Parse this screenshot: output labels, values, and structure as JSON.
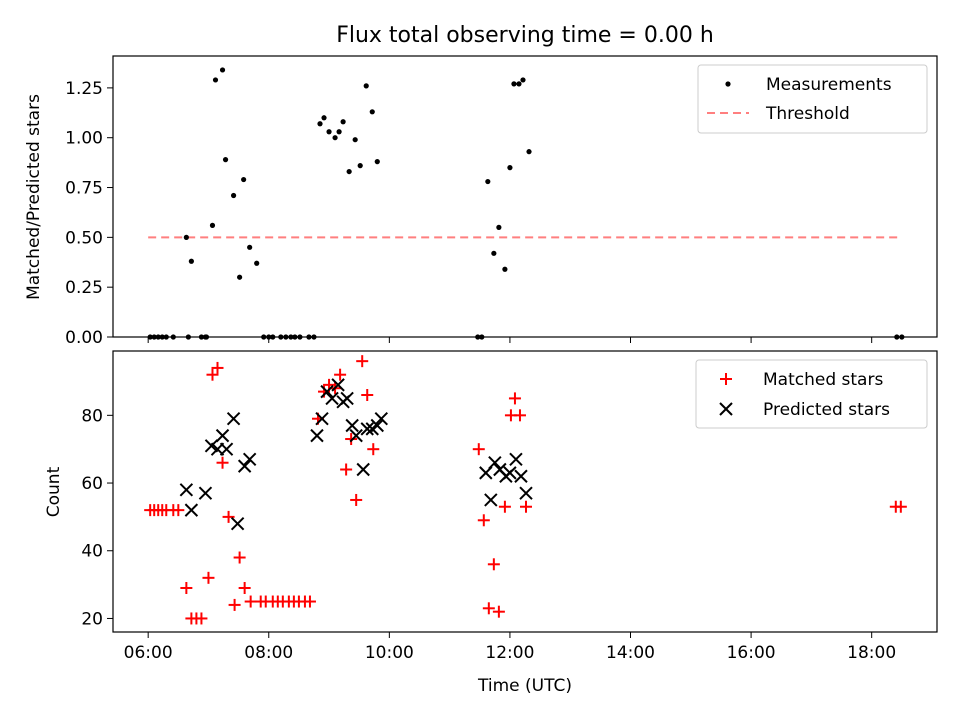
{
  "title": "Flux total observing time = 0.00 h",
  "colors": {
    "measurement": "#000000",
    "threshold": "#ff7f7f",
    "matched": "#ff0000",
    "predicted": "#000000"
  },
  "chart_data": [
    {
      "type": "scatter",
      "title": "Flux total observing time = 0.00 h",
      "ylabel": "Matched/Predicted stars",
      "xlim": [
        "05:25",
        "19:05"
      ],
      "ylim": [
        0,
        1.41
      ],
      "y_ticks": [
        "0.00",
        "0.25",
        "0.50",
        "0.75",
        "1.00",
        "1.25"
      ],
      "legend": {
        "placement": "top-right",
        "entries": [
          "Measurements",
          "Threshold"
        ]
      },
      "threshold": {
        "name": "Threshold",
        "value": 0.5,
        "x_range": [
          "06:00",
          "18:30"
        ]
      },
      "series": [
        {
          "name": "Measurements",
          "points": [
            [
              "06:02",
              0
            ],
            [
              "06:06",
              0
            ],
            [
              "06:10",
              0
            ],
            [
              "06:14",
              0
            ],
            [
              "06:18",
              0
            ],
            [
              "06:25",
              0
            ],
            [
              "06:40",
              0
            ],
            [
              "06:38",
              0.5
            ],
            [
              "06:43",
              0.38
            ],
            [
              "06:53",
              0
            ],
            [
              "06:58",
              0
            ],
            [
              "06:57",
              0
            ],
            [
              "07:04",
              0.56
            ],
            [
              "07:07",
              1.29
            ],
            [
              "07:14",
              1.34
            ],
            [
              "07:17",
              0.89
            ],
            [
              "07:25",
              0.71
            ],
            [
              "07:31",
              0.3
            ],
            [
              "07:35",
              0.79
            ],
            [
              "07:41",
              0.45
            ],
            [
              "07:48",
              0.37
            ],
            [
              "07:55",
              0
            ],
            [
              "08:00",
              0
            ],
            [
              "08:04",
              0
            ],
            [
              "08:12",
              0
            ],
            [
              "08:17",
              0
            ],
            [
              "08:22",
              0
            ],
            [
              "08:26",
              0
            ],
            [
              "08:31",
              0
            ],
            [
              "08:40",
              0
            ],
            [
              "08:45",
              0
            ],
            [
              "08:51",
              1.07
            ],
            [
              "08:55",
              1.1
            ],
            [
              "09:00",
              1.03
            ],
            [
              "09:06",
              1.0
            ],
            [
              "09:10",
              1.03
            ],
            [
              "09:14",
              1.08
            ],
            [
              "09:20",
              0.83
            ],
            [
              "09:26",
              0.99
            ],
            [
              "09:31",
              0.86
            ],
            [
              "09:37",
              1.26
            ],
            [
              "09:43",
              1.13
            ],
            [
              "09:48",
              0.88
            ],
            [
              "11:28",
              0
            ],
            [
              "11:32",
              0
            ],
            [
              "11:38",
              0.78
            ],
            [
              "11:44",
              0.42
            ],
            [
              "11:49",
              0.55
            ],
            [
              "11:55",
              0.34
            ],
            [
              "12:00",
              0.85
            ],
            [
              "12:04",
              1.27
            ],
            [
              "12:09",
              1.27
            ],
            [
              "12:13",
              1.29
            ],
            [
              "12:19",
              0.93
            ],
            [
              "18:25",
              0
            ],
            [
              "18:30",
              0
            ]
          ]
        }
      ]
    },
    {
      "type": "scatter",
      "xlabel": "Time (UTC)",
      "ylabel": "Count",
      "xlim": [
        "05:25",
        "19:05"
      ],
      "ylim": [
        16,
        99
      ],
      "x_ticks": [
        "06:00",
        "08:00",
        "10:00",
        "12:00",
        "14:00",
        "16:00",
        "18:00"
      ],
      "y_ticks": [
        "20",
        "40",
        "60",
        "80"
      ],
      "legend": {
        "placement": "top-right",
        "entries": [
          "Matched stars",
          "Predicted stars"
        ]
      },
      "series": [
        {
          "name": "Matched stars",
          "marker": "plus",
          "points": [
            [
              "06:02",
              52
            ],
            [
              "06:06",
              52
            ],
            [
              "06:10",
              52
            ],
            [
              "06:14",
              52
            ],
            [
              "06:18",
              52
            ],
            [
              "06:25",
              52
            ],
            [
              "06:30",
              52
            ],
            [
              "06:38",
              29
            ],
            [
              "06:43",
              20
            ],
            [
              "06:48",
              20
            ],
            [
              "06:53",
              20
            ],
            [
              "07:00",
              32
            ],
            [
              "07:04",
              92
            ],
            [
              "07:09",
              94
            ],
            [
              "07:14",
              66
            ],
            [
              "07:20",
              50
            ],
            [
              "07:26",
              24
            ],
            [
              "07:31",
              38
            ],
            [
              "07:36",
              29
            ],
            [
              "07:42",
              25
            ],
            [
              "07:52",
              25
            ],
            [
              "07:57",
              25
            ],
            [
              "08:04",
              25
            ],
            [
              "08:09",
              25
            ],
            [
              "08:14",
              25
            ],
            [
              "08:20",
              25
            ],
            [
              "08:25",
              25
            ],
            [
              "08:30",
              25
            ],
            [
              "08:36",
              25
            ],
            [
              "08:41",
              25
            ],
            [
              "08:49",
              79
            ],
            [
              "08:55",
              87
            ],
            [
              "09:00",
              89
            ],
            [
              "09:06",
              88
            ],
            [
              "09:11",
              92
            ],
            [
              "09:17",
              64
            ],
            [
              "09:22",
              73
            ],
            [
              "09:27",
              55
            ],
            [
              "09:33",
              96
            ],
            [
              "09:38",
              86
            ],
            [
              "09:44",
              70
            ],
            [
              "11:29",
              70
            ],
            [
              "11:34",
              49
            ],
            [
              "11:39",
              23
            ],
            [
              "11:44",
              36
            ],
            [
              "11:49",
              22
            ],
            [
              "11:55",
              53
            ],
            [
              "12:01",
              80
            ],
            [
              "12:05",
              85
            ],
            [
              "12:10",
              80
            ],
            [
              "12:16",
              53
            ],
            [
              "18:24",
              53
            ],
            [
              "18:29",
              53
            ]
          ]
        },
        {
          "name": "Predicted stars",
          "marker": "x",
          "points": [
            [
              "06:38",
              58
            ],
            [
              "06:43",
              52
            ],
            [
              "06:57",
              57
            ],
            [
              "07:03",
              71
            ],
            [
              "07:09",
              70
            ],
            [
              "07:14",
              74
            ],
            [
              "07:18",
              70
            ],
            [
              "07:25",
              79
            ],
            [
              "07:29",
              48
            ],
            [
              "07:36",
              65
            ],
            [
              "07:41",
              67
            ],
            [
              "08:48",
              74
            ],
            [
              "08:53",
              79
            ],
            [
              "08:58",
              87
            ],
            [
              "09:03",
              85
            ],
            [
              "09:09",
              89
            ],
            [
              "09:14",
              84
            ],
            [
              "09:18",
              85
            ],
            [
              "09:23",
              77
            ],
            [
              "09:27",
              74
            ],
            [
              "09:34",
              64
            ],
            [
              "09:38",
              76
            ],
            [
              "09:43",
              76
            ],
            [
              "09:48",
              77
            ],
            [
              "09:52",
              79
            ],
            [
              "11:36",
              63
            ],
            [
              "11:41",
              55
            ],
            [
              "11:45",
              66
            ],
            [
              "11:50",
              64
            ],
            [
              "11:56",
              62
            ],
            [
              "12:00",
              63
            ],
            [
              "12:06",
              67
            ],
            [
              "12:11",
              62
            ],
            [
              "12:16",
              57
            ]
          ]
        }
      ]
    }
  ]
}
